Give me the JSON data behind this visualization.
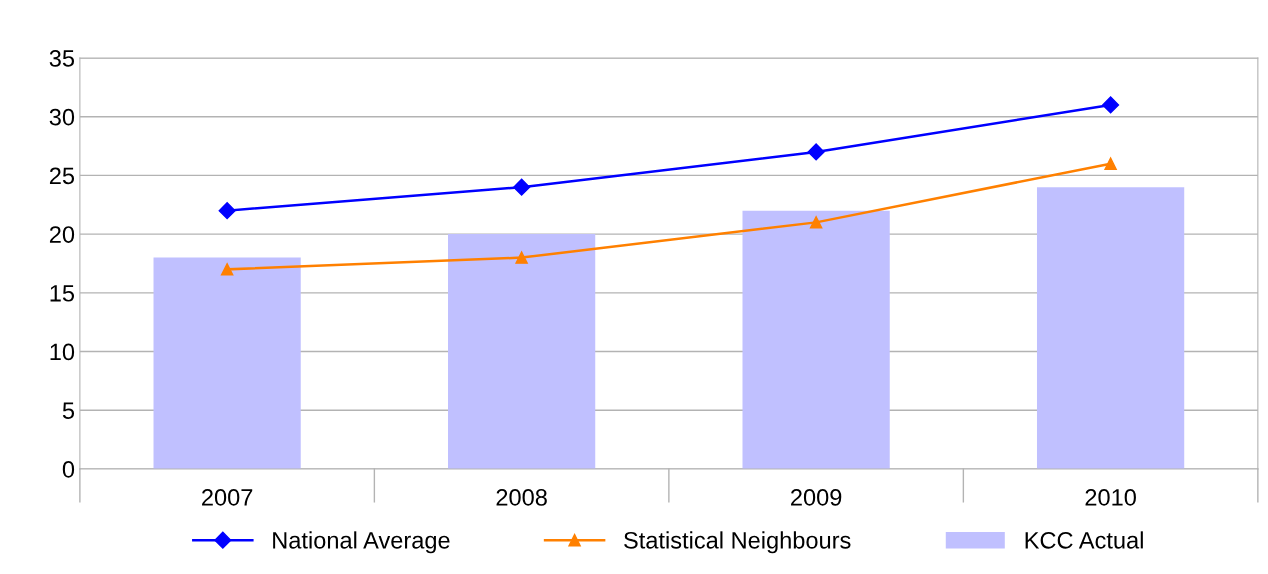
{
  "chart_data": {
    "type": "bar",
    "categories": [
      "2007",
      "2008",
      "2009",
      "2010"
    ],
    "series": [
      {
        "name": "National Average",
        "type": "line",
        "color": "#0000ff",
        "marker": "diamond",
        "values": [
          22,
          24,
          27,
          31
        ]
      },
      {
        "name": "Statistical Neighbours",
        "type": "line",
        "color": "#ff8000",
        "marker": "triangle",
        "values": [
          17,
          18,
          21,
          26
        ]
      },
      {
        "name": "KCC Actual",
        "color": "#c0c0ff",
        "values": [
          18,
          20,
          22,
          24
        ]
      }
    ],
    "ylim": [
      0,
      35
    ],
    "yticks": [
      0,
      5,
      10,
      15,
      20,
      25,
      30,
      35
    ],
    "grid": "y",
    "legend": "bottom"
  }
}
